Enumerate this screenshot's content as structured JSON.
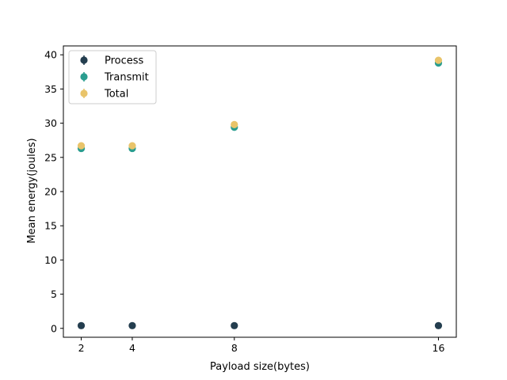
{
  "chart_data": {
    "type": "scatter",
    "title": "",
    "xlabel": "Payload size(bytes)",
    "ylabel": "Mean energy(joules)",
    "x": [
      2,
      4,
      8,
      16
    ],
    "xticks": [
      2,
      4,
      8,
      16
    ],
    "xlim": [
      1.3,
      16.7
    ],
    "yticks": [
      0,
      5,
      10,
      15,
      20,
      25,
      30,
      35,
      40
    ],
    "ylim": [
      -1.3,
      41.3
    ],
    "grid": false,
    "legend_position": "upper-left",
    "error_bars": true,
    "series": [
      {
        "name": "Process",
        "color": "#243e4f",
        "values": [
          0.4,
          0.4,
          0.4,
          0.4
        ]
      },
      {
        "name": "Transmit",
        "color": "#2a9d8f",
        "values": [
          26.3,
          26.3,
          29.4,
          38.8
        ]
      },
      {
        "name": "Total",
        "color": "#e9c46a",
        "values": [
          26.7,
          26.7,
          29.8,
          39.2
        ]
      }
    ]
  }
}
